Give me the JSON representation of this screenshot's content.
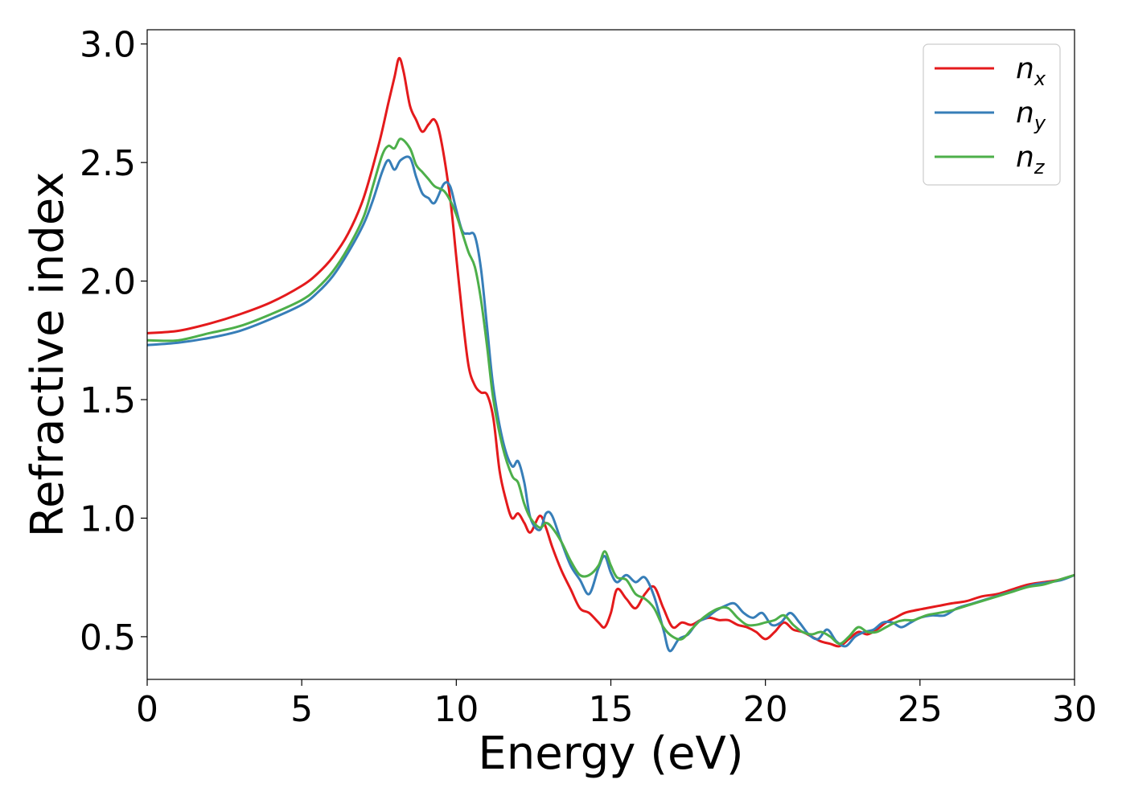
{
  "chart_data": {
    "type": "line",
    "xlabel": "Energy (eV)",
    "ylabel": "Refractive index",
    "xlim": [
      0,
      30
    ],
    "ylim": [
      0.32,
      3.06
    ],
    "xticks": [
      0,
      5,
      10,
      15,
      20,
      25,
      30
    ],
    "yticks": [
      0.5,
      1.0,
      1.5,
      2.0,
      2.5,
      3.0
    ],
    "xtick_labels": [
      "0",
      "5",
      "10",
      "15",
      "20",
      "25",
      "30"
    ],
    "ytick_labels": [
      "0.5",
      "1.0",
      "1.5",
      "2.0",
      "2.5",
      "3.0"
    ],
    "grid": false,
    "legend_position": "top-right",
    "series": [
      {
        "name": "n_x",
        "legend_base": "n",
        "legend_sub": "x",
        "color": "#e41a1c",
        "x": [
          0,
          1,
          2,
          3,
          4,
          5,
          5.5,
          6,
          6.5,
          7,
          7.5,
          7.8,
          8.0,
          8.15,
          8.3,
          8.5,
          8.7,
          8.9,
          9.1,
          9.3,
          9.5,
          9.8,
          10.0,
          10.2,
          10.4,
          10.6,
          10.8,
          11.0,
          11.2,
          11.4,
          11.6,
          11.8,
          12.0,
          12.2,
          12.4,
          12.7,
          12.9,
          13.1,
          13.4,
          13.7,
          14.0,
          14.3,
          14.6,
          14.8,
          15.0,
          15.2,
          15.5,
          15.8,
          16.1,
          16.4,
          16.7,
          17.0,
          17.3,
          17.6,
          17.9,
          18.2,
          18.5,
          18.8,
          19.1,
          19.4,
          19.7,
          20.0,
          20.3,
          20.6,
          20.9,
          21.2,
          21.5,
          21.8,
          22.1,
          22.4,
          22.7,
          23.0,
          23.3,
          23.6,
          23.9,
          24.2,
          24.5,
          24.8,
          25.2,
          25.6,
          26.0,
          26.5,
          27.0,
          27.5,
          28.0,
          28.5,
          29.0,
          29.5,
          30.0
        ],
        "values": [
          1.78,
          1.79,
          1.82,
          1.86,
          1.91,
          1.98,
          2.03,
          2.1,
          2.2,
          2.35,
          2.58,
          2.75,
          2.86,
          2.94,
          2.88,
          2.74,
          2.68,
          2.63,
          2.66,
          2.68,
          2.6,
          2.35,
          2.1,
          1.85,
          1.64,
          1.56,
          1.53,
          1.52,
          1.42,
          1.2,
          1.08,
          1.0,
          1.02,
          0.98,
          0.94,
          1.01,
          0.96,
          0.88,
          0.78,
          0.7,
          0.62,
          0.6,
          0.56,
          0.54,
          0.6,
          0.7,
          0.66,
          0.62,
          0.68,
          0.71,
          0.62,
          0.54,
          0.56,
          0.55,
          0.57,
          0.58,
          0.57,
          0.57,
          0.55,
          0.54,
          0.52,
          0.49,
          0.52,
          0.56,
          0.53,
          0.52,
          0.5,
          0.48,
          0.47,
          0.46,
          0.49,
          0.52,
          0.51,
          0.53,
          0.56,
          0.58,
          0.6,
          0.61,
          0.62,
          0.63,
          0.64,
          0.65,
          0.67,
          0.68,
          0.7,
          0.72,
          0.73,
          0.74,
          0.76
        ]
      },
      {
        "name": "n_y",
        "legend_base": "n",
        "legend_sub": "y",
        "color": "#377eb8",
        "x": [
          0,
          1,
          2,
          3,
          4,
          5,
          5.5,
          6,
          6.5,
          7,
          7.3,
          7.6,
          7.8,
          8.0,
          8.2,
          8.5,
          8.7,
          8.9,
          9.1,
          9.3,
          9.6,
          9.8,
          10.0,
          10.2,
          10.4,
          10.6,
          10.8,
          11.0,
          11.2,
          11.5,
          11.8,
          12.0,
          12.2,
          12.4,
          12.7,
          12.9,
          13.1,
          13.4,
          13.7,
          14.0,
          14.3,
          14.6,
          14.8,
          15.0,
          15.2,
          15.5,
          15.8,
          16.1,
          16.4,
          16.7,
          16.9,
          17.2,
          17.5,
          17.8,
          18.1,
          18.4,
          18.7,
          19.0,
          19.3,
          19.6,
          19.9,
          20.2,
          20.5,
          20.8,
          21.1,
          21.4,
          21.7,
          22.0,
          22.3,
          22.6,
          22.9,
          23.2,
          23.5,
          23.8,
          24.1,
          24.4,
          24.7,
          25.0,
          25.4,
          25.8,
          26.2,
          26.7,
          27.2,
          27.7,
          28.2,
          28.7,
          29.2,
          29.6,
          30.0
        ],
        "values": [
          1.73,
          1.74,
          1.76,
          1.79,
          1.84,
          1.9,
          1.95,
          2.02,
          2.12,
          2.24,
          2.34,
          2.46,
          2.51,
          2.47,
          2.51,
          2.52,
          2.44,
          2.37,
          2.35,
          2.33,
          2.41,
          2.4,
          2.3,
          2.21,
          2.2,
          2.19,
          2.05,
          1.8,
          1.55,
          1.33,
          1.22,
          1.24,
          1.15,
          1.0,
          0.95,
          1.02,
          1.01,
          0.9,
          0.8,
          0.74,
          0.68,
          0.79,
          0.84,
          0.77,
          0.73,
          0.76,
          0.73,
          0.75,
          0.67,
          0.53,
          0.44,
          0.49,
          0.51,
          0.56,
          0.58,
          0.61,
          0.63,
          0.64,
          0.6,
          0.58,
          0.6,
          0.55,
          0.56,
          0.6,
          0.56,
          0.51,
          0.49,
          0.53,
          0.48,
          0.46,
          0.5,
          0.52,
          0.53,
          0.56,
          0.56,
          0.54,
          0.56,
          0.58,
          0.59,
          0.59,
          0.62,
          0.64,
          0.66,
          0.68,
          0.7,
          0.72,
          0.73,
          0.74,
          0.76
        ]
      },
      {
        "name": "n_z",
        "legend_base": "n",
        "legend_sub": "z",
        "color": "#4daf4a",
        "x": [
          0,
          1,
          2,
          3,
          4,
          5,
          5.5,
          6,
          6.5,
          7,
          7.3,
          7.6,
          7.8,
          8.0,
          8.2,
          8.5,
          8.7,
          8.9,
          9.1,
          9.3,
          9.6,
          9.8,
          10.0,
          10.2,
          10.4,
          10.6,
          10.8,
          11.0,
          11.2,
          11.5,
          11.8,
          12.0,
          12.2,
          12.4,
          12.7,
          12.9,
          13.1,
          13.4,
          13.7,
          14.0,
          14.3,
          14.6,
          14.8,
          15.0,
          15.2,
          15.5,
          15.8,
          16.1,
          16.4,
          16.7,
          17.0,
          17.3,
          17.6,
          17.9,
          18.2,
          18.5,
          18.8,
          19.1,
          19.4,
          19.7,
          20.0,
          20.3,
          20.6,
          20.9,
          21.2,
          21.5,
          21.8,
          22.1,
          22.4,
          22.7,
          23.0,
          23.3,
          23.6,
          23.9,
          24.2,
          24.5,
          24.8,
          25.2,
          25.6,
          26.0,
          26.5,
          27.0,
          27.5,
          28.0,
          28.5,
          29.0,
          29.5,
          30.0
        ],
        "values": [
          1.75,
          1.75,
          1.78,
          1.81,
          1.86,
          1.92,
          1.97,
          2.04,
          2.14,
          2.27,
          2.4,
          2.53,
          2.57,
          2.56,
          2.6,
          2.56,
          2.49,
          2.46,
          2.43,
          2.4,
          2.38,
          2.34,
          2.28,
          2.2,
          2.12,
          2.06,
          1.92,
          1.72,
          1.5,
          1.3,
          1.18,
          1.15,
          1.06,
          1.0,
          0.96,
          0.98,
          0.96,
          0.9,
          0.82,
          0.76,
          0.76,
          0.8,
          0.86,
          0.8,
          0.75,
          0.74,
          0.68,
          0.66,
          0.62,
          0.54,
          0.5,
          0.49,
          0.53,
          0.57,
          0.6,
          0.62,
          0.62,
          0.58,
          0.55,
          0.55,
          0.56,
          0.57,
          0.59,
          0.55,
          0.52,
          0.51,
          0.52,
          0.5,
          0.47,
          0.5,
          0.54,
          0.52,
          0.52,
          0.54,
          0.56,
          0.57,
          0.57,
          0.59,
          0.6,
          0.61,
          0.63,
          0.65,
          0.67,
          0.69,
          0.71,
          0.72,
          0.74,
          0.76
        ]
      }
    ]
  }
}
